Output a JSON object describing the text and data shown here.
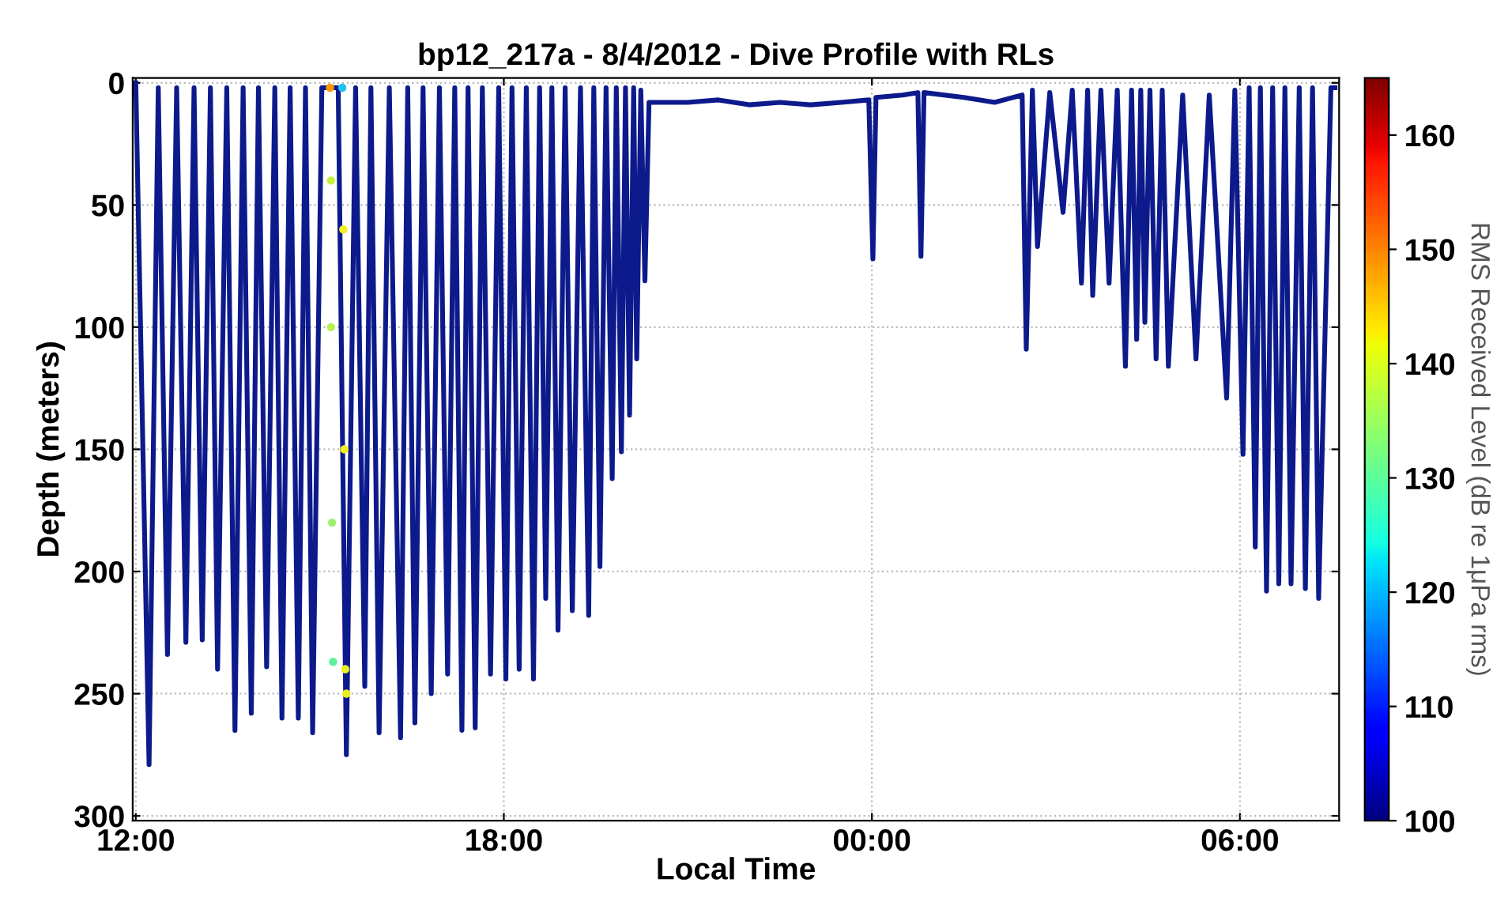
{
  "chart_data": {
    "type": "line",
    "title": "bp12_217a - 8/4/2012 - Dive Profile with RLs",
    "xlabel": "Local Time",
    "ylabel": "Depth (meters)",
    "clabel": "RMS Received Level (dB re 1μPa rms)",
    "xlim": [
      "2012-08-04T11:57",
      "2012-08-05T07:37"
    ],
    "xticks": [
      {
        "value": "2012-08-04T12:00",
        "label": "12:00"
      },
      {
        "value": "2012-08-04T18:00",
        "label": "18:00"
      },
      {
        "value": "2012-08-05T00:00",
        "label": "00:00"
      },
      {
        "value": "2012-08-05T06:00",
        "label": "06:00"
      }
    ],
    "ylim": [
      302,
      -2
    ],
    "yticks": [
      0,
      50,
      100,
      150,
      200,
      250,
      300
    ],
    "grid": true,
    "clim": [
      100,
      165
    ],
    "cticks": [
      100,
      110,
      120,
      130,
      140,
      150,
      160
    ],
    "series": [
      {
        "color": "#0d1a8c",
        "line_style": "solid",
        "marker": "none",
        "x": [
          "2012-08-04T12:00",
          "2012-08-04T12:13",
          "2012-08-04T12:22",
          "2012-08-04T12:31",
          "2012-08-04T12:40",
          "2012-08-04T12:49",
          "2012-08-04T12:57",
          "2012-08-04T13:05",
          "2012-08-04T13:13",
          "2012-08-04T13:20",
          "2012-08-04T13:29",
          "2012-08-04T13:37",
          "2012-08-04T13:45",
          "2012-08-04T13:53",
          "2012-08-04T14:00",
          "2012-08-04T14:08",
          "2012-08-04T14:16",
          "2012-08-04T14:23",
          "2012-08-04T14:31",
          "2012-08-04T14:39",
          "2012-08-04T14:46",
          "2012-08-04T14:53",
          "2012-08-04T15:02",
          "2012-08-04T15:18",
          "2012-08-04T15:26",
          "2012-08-04T15:35",
          "2012-08-04T15:44",
          "2012-08-04T15:50",
          "2012-08-04T15:58",
          "2012-08-04T16:08",
          "2012-08-04T16:19",
          "2012-08-04T16:26",
          "2012-08-04T16:33",
          "2012-08-04T16:41",
          "2012-08-04T16:49",
          "2012-08-04T16:57",
          "2012-08-04T17:05",
          "2012-08-04T17:12",
          "2012-08-04T17:19",
          "2012-08-04T17:25",
          "2012-08-04T17:32",
          "2012-08-04T17:39",
          "2012-08-04T17:47",
          "2012-08-04T17:55",
          "2012-08-04T18:02",
          "2012-08-04T18:08",
          "2012-08-04T18:15",
          "2012-08-04T18:22",
          "2012-08-04T18:29",
          "2012-08-04T18:35",
          "2012-08-04T18:41",
          "2012-08-04T18:47",
          "2012-08-04T18:53",
          "2012-08-04T19:00",
          "2012-08-04T19:07",
          "2012-08-04T19:15",
          "2012-08-04T19:23",
          "2012-08-04T19:28",
          "2012-08-04T19:34",
          "2012-08-04T19:40",
          "2012-08-04T19:46",
          "2012-08-04T19:50",
          "2012-08-04T19:55",
          "2012-08-04T19:59",
          "2012-08-04T20:03",
          "2012-08-04T20:07",
          "2012-08-04T20:10",
          "2012-08-04T20:14",
          "2012-08-04T20:18",
          "2012-08-04T20:22",
          "2012-08-04T21:00",
          "2012-08-04T21:30",
          "2012-08-04T22:00",
          "2012-08-04T22:30",
          "2012-08-04T23:00",
          "2012-08-04T23:30",
          "2012-08-04T23:57",
          "2012-08-05T00:01",
          "2012-08-05T00:04",
          "2012-08-05T00:30",
          "2012-08-05T00:45",
          "2012-08-05T00:48",
          "2012-08-05T00:51",
          "2012-08-05T01:30",
          "2012-08-05T02:00",
          "2012-08-05T02:27",
          "2012-08-05T02:31",
          "2012-08-05T02:37",
          "2012-08-05T02:42",
          "2012-08-05T02:54",
          "2012-08-05T03:07",
          "2012-08-05T03:16",
          "2012-08-05T03:25",
          "2012-08-05T03:31",
          "2012-08-05T03:36",
          "2012-08-05T03:44",
          "2012-08-05T03:52",
          "2012-08-05T04:00",
          "2012-08-05T04:08",
          "2012-08-05T04:14",
          "2012-08-05T04:19",
          "2012-08-05T04:23",
          "2012-08-05T04:27",
          "2012-08-05T04:32",
          "2012-08-05T04:38",
          "2012-08-05T04:44",
          "2012-08-05T04:50",
          "2012-08-05T05:04",
          "2012-08-05T05:17",
          "2012-08-05T05:30",
          "2012-08-05T05:47",
          "2012-08-05T05:55",
          "2012-08-05T06:03",
          "2012-08-05T06:09",
          "2012-08-05T06:15",
          "2012-08-05T06:20",
          "2012-08-05T06:26",
          "2012-08-05T06:32",
          "2012-08-05T06:38",
          "2012-08-05T06:44",
          "2012-08-05T06:50",
          "2012-08-05T06:58",
          "2012-08-05T07:04",
          "2012-08-05T07:11",
          "2012-08-05T07:17",
          "2012-08-05T07:29",
          "2012-08-05T07:33"
        ],
        "values": [
          0,
          279,
          2,
          234,
          2,
          229,
          2,
          228,
          2,
          240,
          2,
          265,
          2,
          258,
          2,
          239,
          2,
          260,
          2,
          260,
          2,
          266,
          2,
          2,
          275,
          2,
          247,
          2,
          266,
          2,
          268,
          2,
          262,
          2,
          250,
          2,
          242,
          2,
          265,
          2,
          264,
          2,
          242,
          2,
          244,
          2,
          240,
          2,
          244,
          2,
          211,
          2,
          224,
          2,
          216,
          2,
          218,
          2,
          198,
          2,
          162,
          2,
          151,
          2,
          136,
          2,
          113,
          3,
          81,
          8,
          8,
          7,
          9,
          8,
          9,
          8,
          7,
          72,
          6,
          5,
          4,
          71,
          4,
          6,
          8,
          5,
          109,
          3,
          67,
          4,
          53,
          3,
          82,
          3,
          87,
          3,
          82,
          3,
          116,
          3,
          105,
          3,
          98,
          3,
          113,
          3,
          116,
          5,
          113,
          5,
          129,
          3,
          152,
          2,
          190,
          2,
          208,
          2,
          205,
          2,
          205,
          2,
          207,
          2,
          211,
          2,
          2
        ]
      },
      {
        "type": "scatter",
        "marker": "circle",
        "x": [
          "2012-08-04T15:10",
          "2012-08-04T15:11",
          "2012-08-04T15:11",
          "2012-08-04T15:12",
          "2012-08-04T15:13",
          "2012-08-04T15:22",
          "2012-08-04T15:23",
          "2012-08-04T15:24",
          "2012-08-04T15:25",
          "2012-08-04T15:26"
        ],
        "values": [
          2,
          40,
          100,
          180,
          237,
          2,
          60,
          150,
          240,
          250
        ],
        "colors": [
          "#ff9900",
          "#c8f040",
          "#b8f050",
          "#a0f070",
          "#60f0a0",
          "#20c0f0",
          "#f0f020",
          "#f0f020",
          "#e8f020",
          "#e8f020"
        ]
      }
    ]
  }
}
